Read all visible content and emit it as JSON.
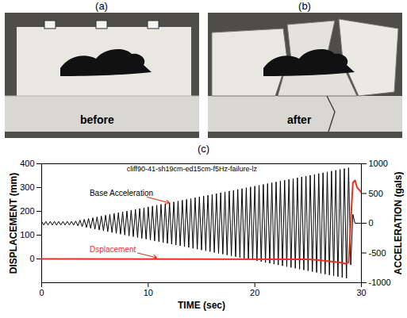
{
  "photos": [
    {
      "label": "(a)",
      "caption": "before"
    },
    {
      "label": "(b)",
      "caption": "after"
    }
  ],
  "chart_data": {
    "label": "(c)",
    "type": "line",
    "title": "cliff90-41-sh19cm-ed15cm-f5Hz-failure-lz",
    "x_label": "TIME (sec)",
    "y_label": "DISPLACEMENT (mm)",
    "y2_label": "ACCELERATION (gals)",
    "xlim": [
      0,
      30
    ],
    "xticks": [
      0,
      10,
      20,
      30
    ],
    "ylim": [
      -100,
      400
    ],
    "yticks": [
      0,
      100,
      200,
      300,
      400
    ],
    "y2lim": [
      -1000,
      1000
    ],
    "y2ticks": [
      -1000,
      -500,
      0,
      500,
      1000
    ],
    "series": [
      {
        "name": "Base Acceleration",
        "color": "#000000",
        "axis": "y2",
        "x": [
          0,
          0.2,
          0.4,
          0.6,
          0.8,
          1,
          1.2,
          1.4,
          1.6,
          1.8,
          2,
          2.2,
          2.4,
          2.6,
          2.8,
          3,
          3.2,
          3.4,
          3.6,
          3.8,
          4,
          4.2,
          4.4,
          4.6,
          4.8,
          5,
          5.2,
          5.4,
          5.6,
          5.8,
          6,
          6.2,
          6.4,
          6.6,
          6.8,
          7,
          7.2,
          7.4,
          7.6,
          7.8,
          8,
          8.2,
          8.4,
          8.6,
          8.8,
          9,
          9.2,
          9.4,
          9.6,
          9.8,
          10,
          10.2,
          10.4,
          10.6,
          10.8,
          11,
          11.2,
          11.4,
          11.6,
          11.8,
          12,
          12.2,
          12.4,
          12.6,
          12.8,
          13,
          13.2,
          13.4,
          13.6,
          13.8,
          14,
          14.2,
          14.4,
          14.6,
          14.8,
          15,
          15.2,
          15.4,
          15.6,
          15.8,
          16,
          16.2,
          16.4,
          16.6,
          16.8,
          17,
          17.2,
          17.4,
          17.6,
          17.8,
          18,
          18.2,
          18.4,
          18.6,
          18.8,
          19,
          19.2,
          19.4,
          19.6,
          19.8,
          20,
          20.2,
          20.4,
          20.6,
          20.8,
          21,
          21.2,
          21.4,
          21.6,
          21.8,
          22,
          22.2,
          22.4,
          22.6,
          22.8,
          23,
          23.2,
          23.4,
          23.6,
          23.8,
          24,
          24.2,
          24.4,
          24.6,
          24.8,
          25,
          25.2,
          25.4,
          25.6,
          25.8,
          26,
          26.2,
          26.4,
          26.6,
          26.8,
          27,
          27.2,
          27.4,
          27.6,
          27.8,
          28,
          28.2,
          28.4,
          28.6,
          28.8,
          29,
          29.2,
          29.4,
          30
        ],
        "values": [
          30,
          -30,
          30,
          -30,
          30,
          -30,
          30,
          -30,
          30,
          -30,
          30,
          -30,
          30,
          -30,
          30,
          -30,
          37,
          -44,
          51,
          -58,
          65,
          -72,
          79,
          -86,
          93,
          -100,
          107,
          -114,
          121,
          -128,
          135,
          -142,
          149,
          -156,
          163,
          -170,
          177,
          -184,
          191,
          -198,
          205,
          -212,
          219,
          -226,
          233,
          -240,
          247,
          -254,
          261,
          -268,
          275,
          -282,
          289,
          -296,
          303,
          -310,
          317,
          -324,
          331,
          -338,
          345,
          -352,
          359,
          -366,
          373,
          -380,
          387,
          -394,
          401,
          -408,
          415,
          -422,
          429,
          -436,
          443,
          -450,
          457,
          -464,
          471,
          -478,
          485,
          -492,
          499,
          -506,
          513,
          -520,
          527,
          -534,
          541,
          -548,
          555,
          -562,
          569,
          -576,
          583,
          -590,
          597,
          -604,
          611,
          -618,
          625,
          -632,
          639,
          -646,
          653,
          -660,
          667,
          -674,
          681,
          -688,
          695,
          -702,
          709,
          -716,
          723,
          -730,
          737,
          -744,
          751,
          -758,
          765,
          -772,
          779,
          -786,
          793,
          -800,
          807,
          -814,
          821,
          -828,
          835,
          -842,
          849,
          -856,
          863,
          -870,
          877,
          -884,
          891,
          -898,
          905,
          -912,
          919,
          -926,
          933,
          -700,
          150,
          0,
          0
        ]
      },
      {
        "name": "Dsplacement",
        "color": "#e8321e",
        "x": [
          0,
          25,
          26,
          27,
          28,
          28.5,
          28.8,
          29,
          29.2,
          29.4,
          29.6,
          30
        ],
        "values": [
          0,
          -2,
          -5,
          -10,
          -15,
          -20,
          -15,
          150,
          320,
          330,
          300,
          280
        ]
      }
    ]
  }
}
